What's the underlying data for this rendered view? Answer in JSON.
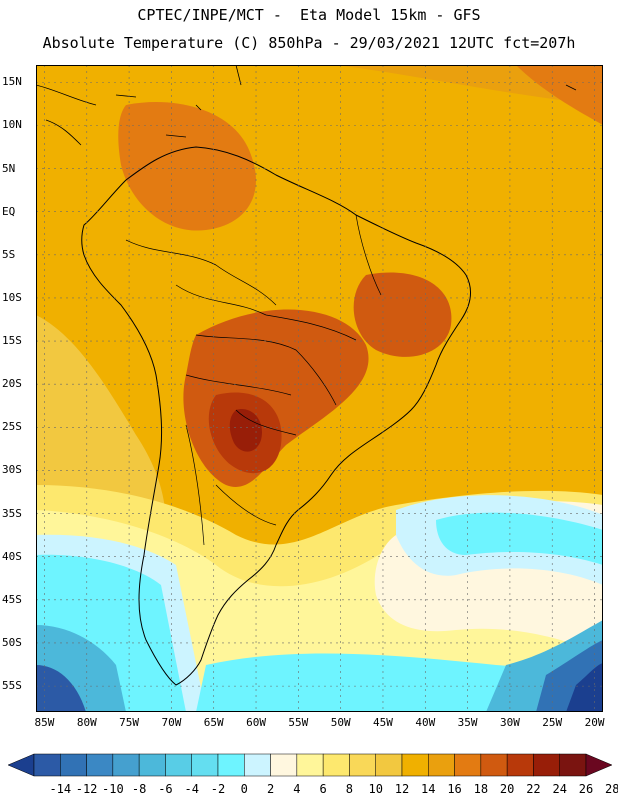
{
  "header": {
    "line1": "CPTEC/INPE/MCT -  Eta Model 15km - GFS",
    "line2": "Absolute Temperature (C) 850hPa - 29/03/2021 12UTC fct=207h"
  },
  "map": {
    "lon_range": [
      -86,
      -19
    ],
    "lat_range": [
      -58,
      17
    ],
    "lat_ticks": [
      {
        "value": 15,
        "label": "15N"
      },
      {
        "value": 10,
        "label": "10N"
      },
      {
        "value": 5,
        "label": "5N"
      },
      {
        "value": 0,
        "label": "EQ"
      },
      {
        "value": -5,
        "label": "5S"
      },
      {
        "value": -10,
        "label": "10S"
      },
      {
        "value": -15,
        "label": "15S"
      },
      {
        "value": -20,
        "label": "20S"
      },
      {
        "value": -25,
        "label": "25S"
      },
      {
        "value": -30,
        "label": "30S"
      },
      {
        "value": -35,
        "label": "35S"
      },
      {
        "value": -40,
        "label": "40S"
      },
      {
        "value": -45,
        "label": "45S"
      },
      {
        "value": -50,
        "label": "50S"
      },
      {
        "value": -55,
        "label": "55S"
      }
    ],
    "lon_ticks": [
      {
        "value": -85,
        "label": "85W"
      },
      {
        "value": -80,
        "label": "80W"
      },
      {
        "value": -75,
        "label": "75W"
      },
      {
        "value": -70,
        "label": "70W"
      },
      {
        "value": -65,
        "label": "65W"
      },
      {
        "value": -60,
        "label": "60W"
      },
      {
        "value": -55,
        "label": "55W"
      },
      {
        "value": -50,
        "label": "50W"
      },
      {
        "value": -45,
        "label": "45W"
      },
      {
        "value": -40,
        "label": "40W"
      },
      {
        "value": -35,
        "label": "35W"
      },
      {
        "value": -30,
        "label": "30W"
      },
      {
        "value": -25,
        "label": "25W"
      },
      {
        "value": -20,
        "label": "20W"
      }
    ],
    "colors": {
      "background_warm": "#f0b000",
      "grid": "#6a6a6a",
      "coast": "#000000"
    }
  },
  "colorbar": {
    "labels": [
      "-14",
      "-12",
      "-10",
      "-8",
      "-6",
      "-4",
      "-2",
      "0",
      "2",
      "4",
      "6",
      "8",
      "10",
      "12",
      "14",
      "16",
      "18",
      "20",
      "22",
      "24",
      "26",
      "28"
    ],
    "colors": [
      "#1b3f8f",
      "#2c5aa6",
      "#3172b5",
      "#3b88c4",
      "#45a0cf",
      "#4cb8da",
      "#58cde6",
      "#64def0",
      "#6ef4ff",
      "#ccf4ff",
      "#fff7df",
      "#fff69a",
      "#fde86e",
      "#f9d858",
      "#f2c840",
      "#f0b000",
      "#eaa00e",
      "#e37b12",
      "#d05a10",
      "#b8390a",
      "#981e08",
      "#7a1410",
      "#6a0720"
    ]
  }
}
